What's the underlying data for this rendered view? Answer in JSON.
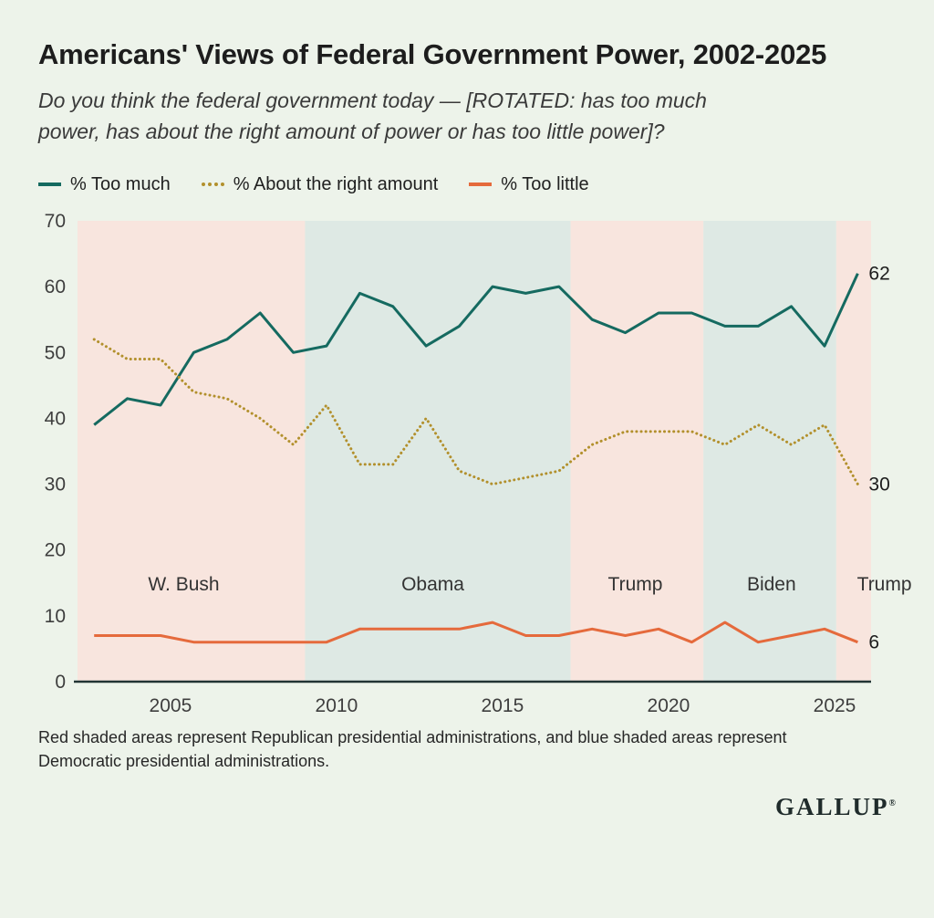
{
  "header": {
    "title": "Americans' Views of Federal Government Power, 2002-2025",
    "subtitle": "Do you think the federal government today — [ROTATED: has too much power, has about the right amount of power or has too little power]?"
  },
  "legend": [
    {
      "label": "% Too much",
      "style": "solid",
      "color": "#156a60"
    },
    {
      "label": "% About the right amount",
      "style": "dotted",
      "color": "#b2902c"
    },
    {
      "label": "% Too little",
      "style": "solid",
      "color": "#e56a3c"
    }
  ],
  "chart_data": {
    "type": "line",
    "title": "Americans' Views of Federal Government Power, 2002-2025",
    "x_years": [
      2002,
      2003,
      2004,
      2005,
      2006,
      2007,
      2008,
      2009,
      2010,
      2011,
      2012,
      2013,
      2014,
      2015,
      2016,
      2017,
      2018,
      2019,
      2020,
      2021,
      2022,
      2023,
      2024,
      2025
    ],
    "point_offset": 0.7,
    "series": [
      {
        "key": "too_much",
        "name": "% Too much",
        "style": "solid",
        "color": "#156a60",
        "end_label": "62",
        "values": [
          39,
          43,
          42,
          50,
          52,
          56,
          50,
          51,
          59,
          57,
          51,
          54,
          60,
          59,
          60,
          55,
          53,
          56,
          56,
          54,
          54,
          57,
          51,
          62
        ]
      },
      {
        "key": "about_right",
        "name": "% About the right amount",
        "style": "dotted",
        "color": "#b2902c",
        "end_label": "30",
        "values": [
          52,
          49,
          49,
          44,
          43,
          40,
          36,
          42,
          33,
          33,
          40,
          32,
          30,
          31,
          32,
          36,
          38,
          38,
          38,
          36,
          39,
          36,
          39,
          30
        ]
      },
      {
        "key": "too_little",
        "name": "% Too little",
        "style": "solid",
        "color": "#e56a3c",
        "end_label": "6",
        "values": [
          7,
          7,
          7,
          6,
          6,
          6,
          6,
          6,
          8,
          8,
          8,
          8,
          9,
          7,
          7,
          8,
          7,
          8,
          6,
          9,
          6,
          7,
          8,
          6
        ]
      }
    ],
    "ylim": [
      0,
      70
    ],
    "yticks": [
      0,
      10,
      20,
      30,
      40,
      50,
      60,
      70
    ],
    "xticks": [
      2005,
      2010,
      2015,
      2020,
      2025
    ],
    "x_domain": [
      2002.2,
      2026.1
    ],
    "grid": false,
    "legend_position": "top",
    "bands": [
      {
        "party": "R",
        "label": "W. Bush",
        "from": 2002.2,
        "to": 2009.05,
        "label_x": 2005.4
      },
      {
        "party": "D",
        "label": "Obama",
        "from": 2009.05,
        "to": 2017.05,
        "label_x": 2012.9
      },
      {
        "party": "R",
        "label": "Trump",
        "from": 2017.05,
        "to": 2021.05,
        "label_x": 2019.0
      },
      {
        "party": "D",
        "label": "Biden",
        "from": 2021.05,
        "to": 2025.05,
        "label_x": 2023.1
      },
      {
        "party": "R",
        "label": "Trump",
        "from": 2025.05,
        "to": 2026.1,
        "label_x": 2026.5
      }
    ],
    "band_colors": {
      "R": "#f8e5de",
      "D": "#dee9e4"
    },
    "president_label_y": 15
  },
  "footnote": "Red shaded areas represent Republican presidential administrations, and blue shaded areas represent Democratic presidential administrations.",
  "brand": {
    "wordmark": "GALLUP",
    "registered": "®"
  }
}
